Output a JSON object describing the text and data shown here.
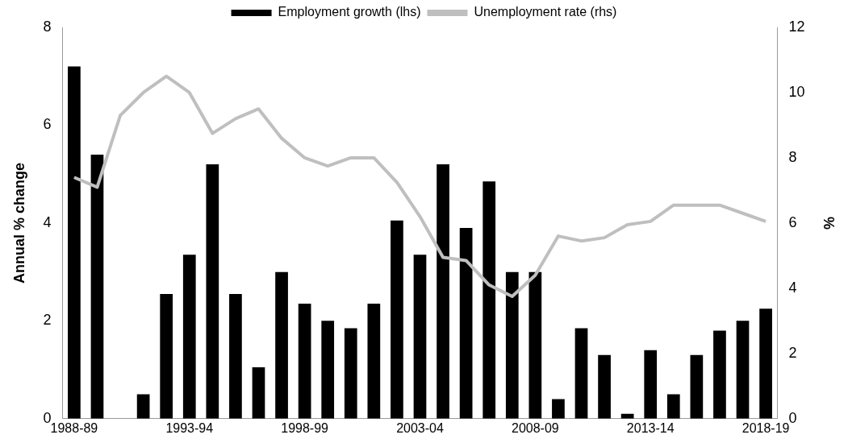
{
  "chart_data": {
    "type": "bar",
    "ylabel": "Annual % change",
    "y2label": "%",
    "categories": [
      "1988-89",
      null,
      null,
      null,
      null,
      "1993-94",
      null,
      null,
      null,
      null,
      "1998-99",
      null,
      null,
      null,
      null,
      "2003-04",
      null,
      null,
      null,
      null,
      "2008-09",
      null,
      null,
      null,
      null,
      "2013-14",
      null,
      null,
      null,
      null,
      "2018-19"
    ],
    "series": [
      {
        "name": "Employment growth (lhs)",
        "color": "#000000",
        "values": [
          7.2,
          5.4,
          0,
          0.5,
          2.55,
          3.35,
          5.2,
          2.55,
          1.05,
          3.0,
          2.35,
          2.0,
          1.85,
          2.35,
          4.05,
          3.35,
          5.2,
          3.9,
          4.85,
          3.0,
          3.0,
          0.4,
          1.85,
          1.3,
          0.1,
          1.4,
          0.5,
          1.3,
          1.8,
          2.0,
          2.25
        ]
      },
      {
        "name": "Unemployment rate (rhs)",
        "type": "line",
        "axis": "y2",
        "color": "#bfbfbf",
        "values": [
          7.4,
          7.1,
          9.3,
          10.0,
          10.5,
          10.0,
          8.75,
          9.2,
          9.5,
          8.6,
          8.0,
          7.75,
          8.0,
          8.0,
          7.25,
          6.2,
          4.95,
          4.85,
          4.1,
          3.75,
          4.4,
          5.6,
          5.45,
          5.55,
          5.95,
          6.05,
          6.55,
          6.55,
          6.55,
          6.3,
          6.05
        ]
      }
    ],
    "ylim": [
      0,
      8
    ],
    "yticks": [
      0,
      2,
      4,
      6,
      8
    ],
    "y2lim": [
      0,
      12
    ],
    "y2ticks": [
      0,
      2,
      4,
      6,
      8,
      10,
      12
    ],
    "grid": false,
    "legend": "top",
    "marker": "none"
  }
}
